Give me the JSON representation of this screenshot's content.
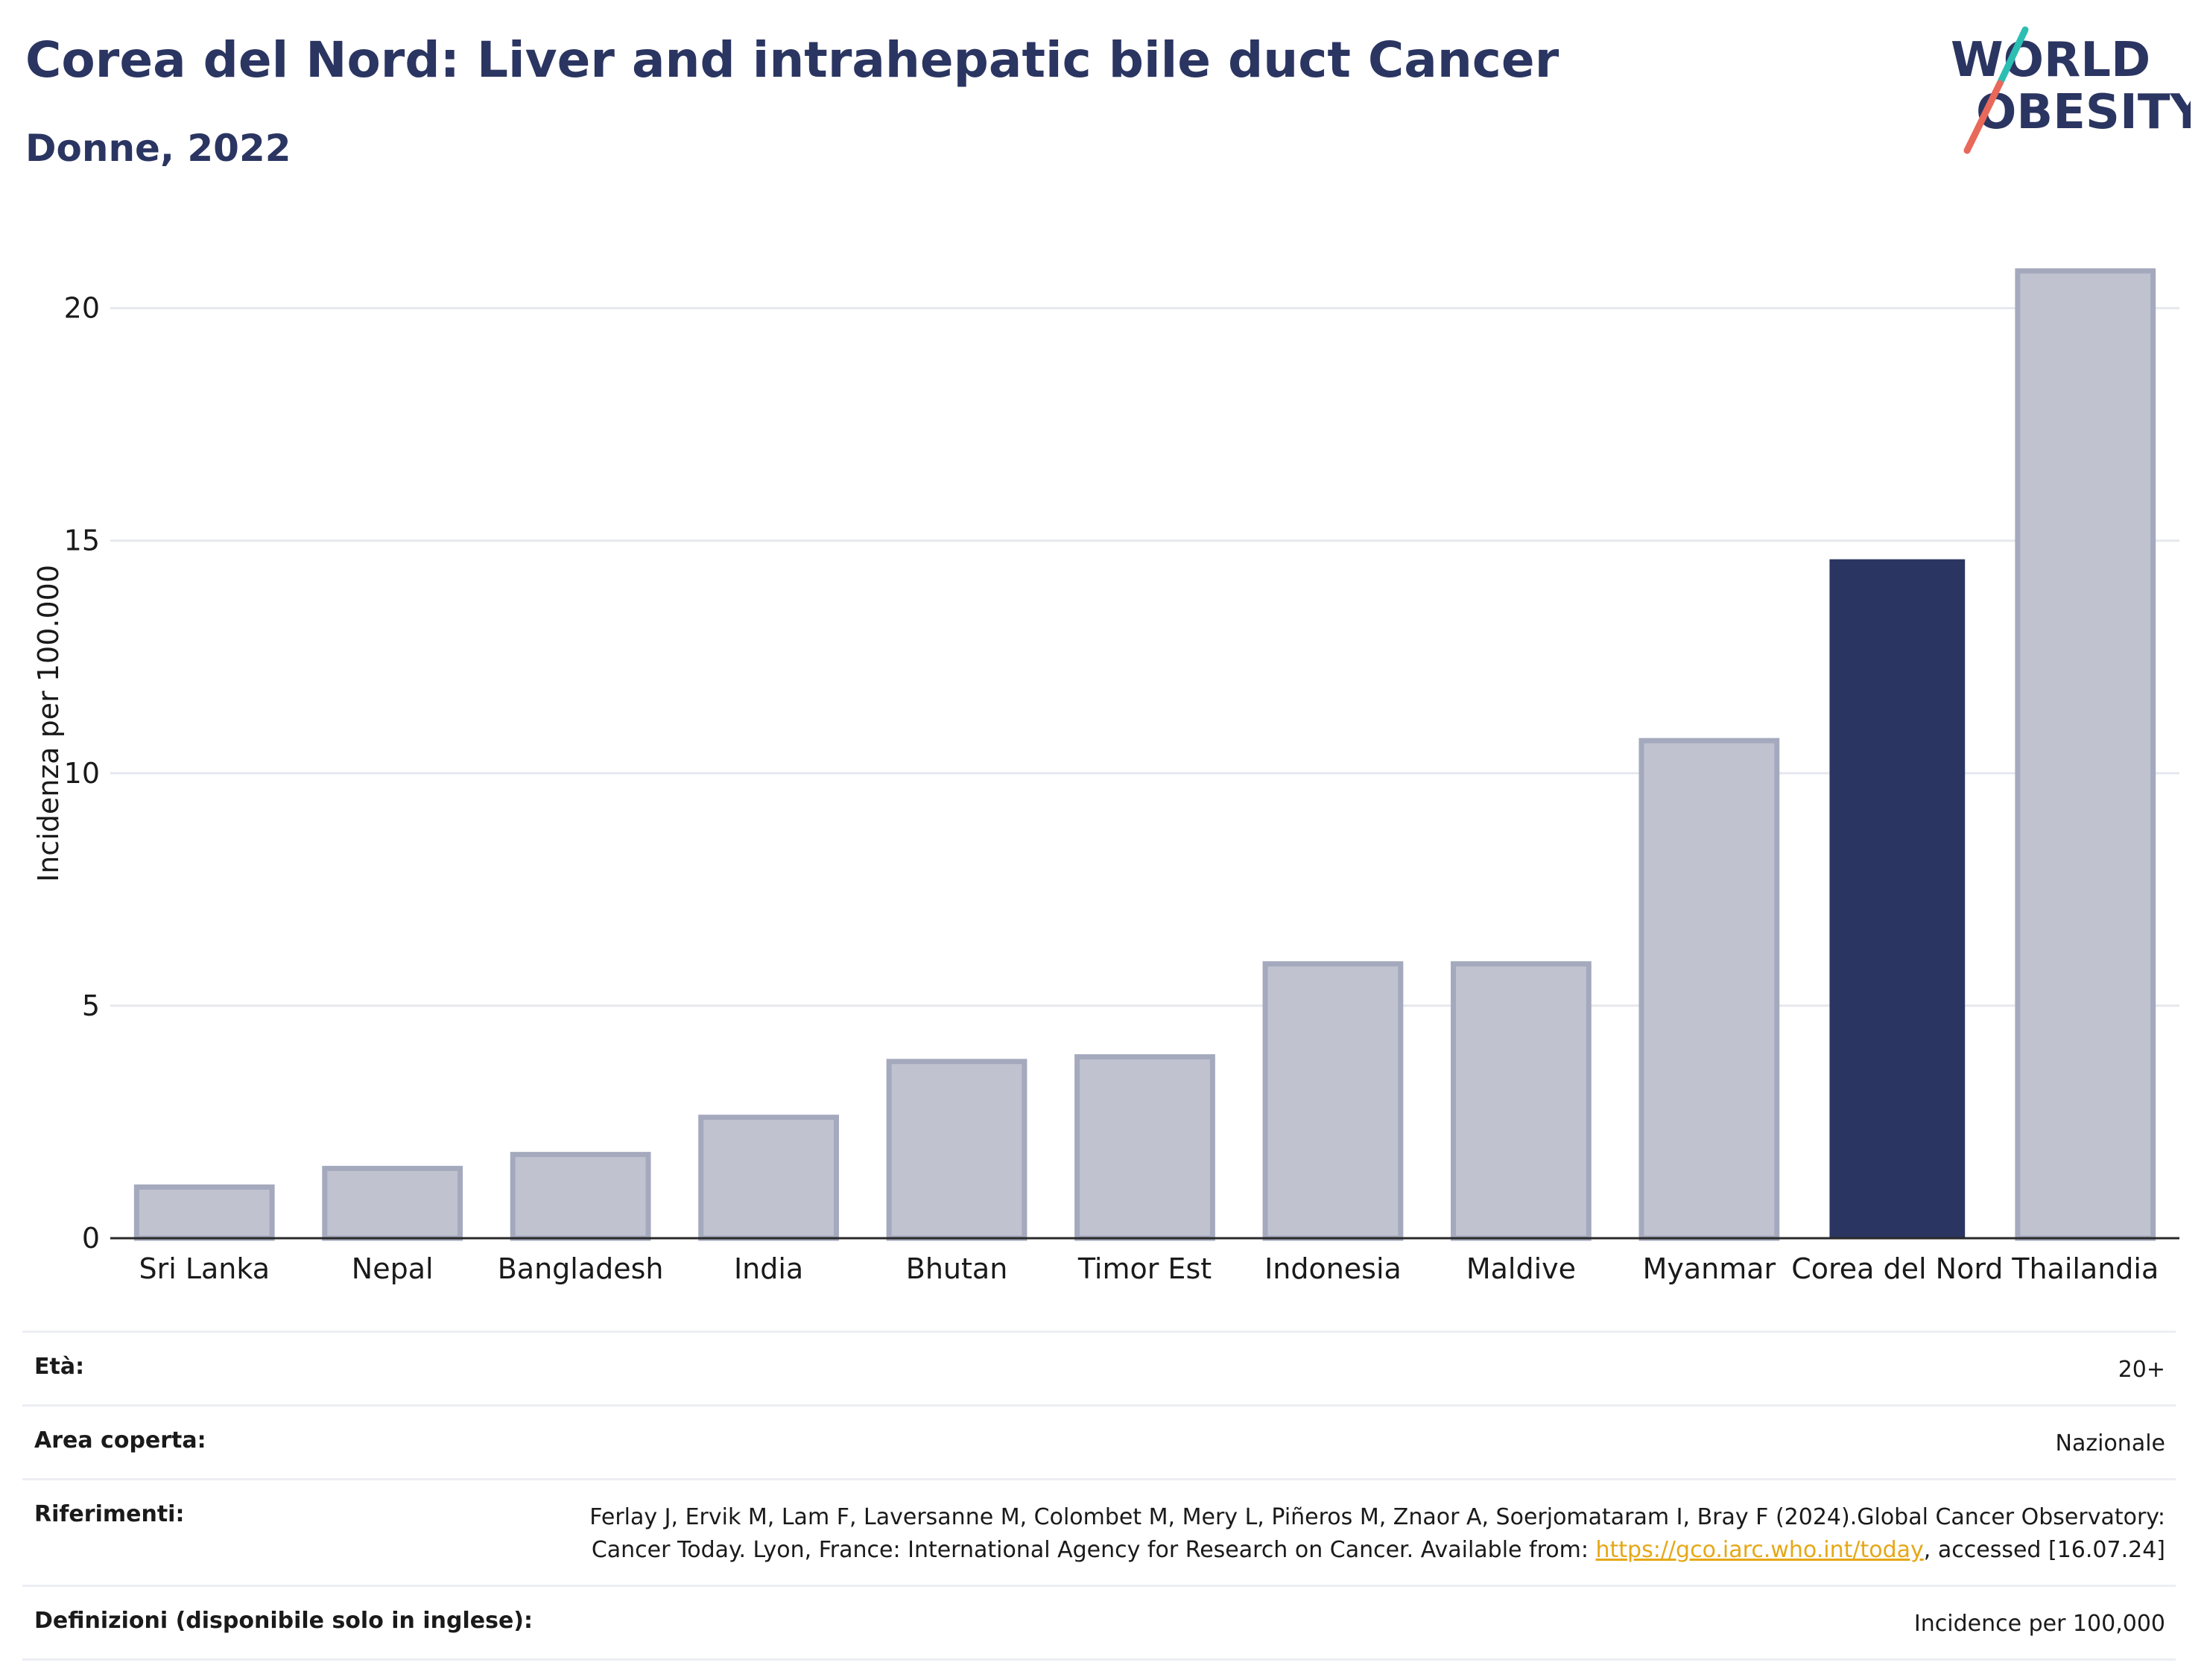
{
  "header": {
    "title": "Corea del Nord: Liver and intrahepatic bile duct Cancer",
    "subtitle": "Donne, 2022"
  },
  "logo": {
    "line1": "WORLD",
    "line2": "OBESITY",
    "colors": {
      "text": "#2b3561",
      "slash_top": "#2bbfb3",
      "slash_bottom": "#e8685a"
    }
  },
  "chart_data": {
    "type": "bar",
    "title": "Corea del Nord: Liver and intrahepatic bile duct Cancer",
    "subtitle": "Donne, 2022",
    "xlabel": "",
    "ylabel": "Incidenza per 100.000",
    "ylim": [
      0,
      21.5
    ],
    "yticks": [
      0,
      5,
      10,
      15,
      20
    ],
    "grid": true,
    "categories": [
      "Sri Lanka",
      "Nepal",
      "Bangladesh",
      "India",
      "Bhutan",
      "Timor Est",
      "Indonesia",
      "Maldive",
      "Myanmar",
      "Corea del Nord",
      "Thailandia"
    ],
    "values": [
      1.1,
      1.5,
      1.8,
      2.6,
      3.8,
      3.9,
      5.9,
      5.9,
      10.7,
      14.6,
      20.8
    ],
    "highlight": "Corea del Nord",
    "colors": {
      "bar": "#c0c3cf",
      "bar_border": "#a4a9bd",
      "highlight": "#2b3561"
    }
  },
  "info": {
    "age_label": "Età:",
    "age_value": "20+",
    "area_label": "Area coperta:",
    "area_value": "Nazionale",
    "ref_label": "Riferimenti:",
    "ref_text_1": "Ferlay J, Ervik M, Lam F, Laversanne M, Colombet M, Mery L, Piñeros M, Znaor A, Soerjomataram I, Bray F (2024).Global Cancer Observatory: Cancer Today. Lyon, France: International Agency for Research on Cancer. Available from: ",
    "ref_link": "https://gco.iarc.who.int/today",
    "ref_text_2": ", accessed [16.07.24]",
    "def_label": "Definizioni (disponibile solo in inglese):",
    "def_value": "Incidence per 100,000"
  }
}
